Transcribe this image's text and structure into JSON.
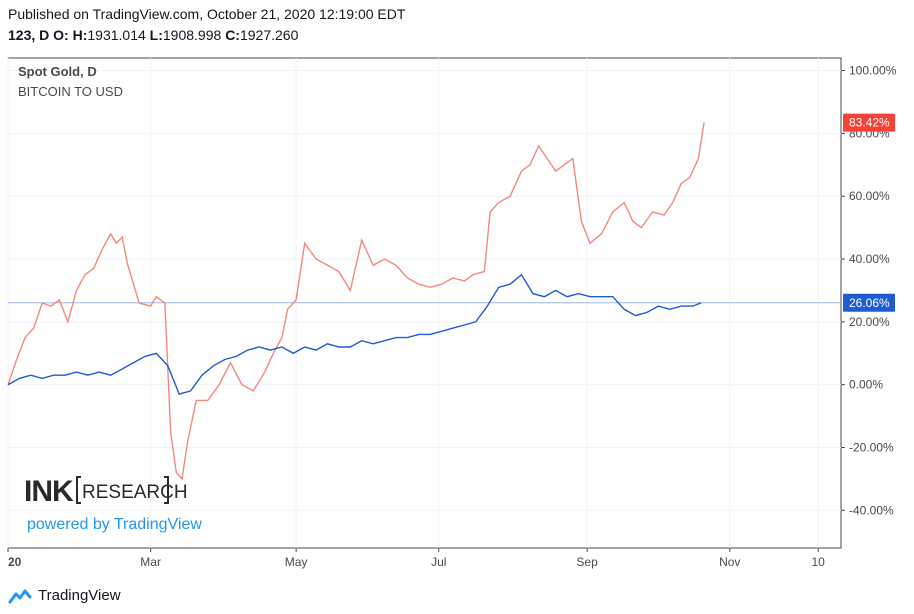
{
  "header": {
    "published": "Published on TradingView.com, October 21, 2020 12:19:00 EDT",
    "symbol": "123, D",
    "o_label": "O:",
    "h_label": "H:",
    "h_val": "1931.014",
    "l_label": "L:",
    "l_val": "1908.998",
    "c_label": "C:",
    "c_val": "1927.260"
  },
  "legend": {
    "title": "Spot Gold, D",
    "subtitle": "BITCOIN TO USD"
  },
  "watermark": {
    "ink": "INK",
    "research": "RESEARCH",
    "powered": "powered by TradingView"
  },
  "footer": {
    "brand": "TradingView"
  },
  "colors": {
    "gold": "#1f5bd1",
    "bitcoin": "#f08a7c",
    "gold_badge": "#1f5bd1",
    "bitcoin_badge": "#f44336",
    "crosshair": "#9fb8e6",
    "grid": "#f0f3f7",
    "powered": "#2196f3"
  },
  "chart_data": {
    "type": "line",
    "y_unit": "%",
    "ylim": [
      -52,
      104
    ],
    "y_ticks": [
      100,
      80,
      60,
      40,
      20,
      0,
      -20,
      -40
    ],
    "y_tick_labels": [
      "100.00%",
      "80.00%",
      "60.00%",
      "40.00%",
      "20.00%",
      "0.00%",
      "-20.00%",
      "-40.00%"
    ],
    "xlim": [
      0,
      292
    ],
    "x_ticks": [
      {
        "day": 0,
        "label": "20",
        "bold": true
      },
      {
        "day": 50,
        "label": "Mar",
        "bold": false
      },
      {
        "day": 101,
        "label": "May",
        "bold": false
      },
      {
        "day": 151,
        "label": "Jul",
        "bold": false
      },
      {
        "day": 203,
        "label": "Sep",
        "bold": false
      },
      {
        "day": 253,
        "label": "Nov",
        "bold": false
      },
      {
        "day": 284,
        "label": "10",
        "bold": false
      }
    ],
    "last_values": {
      "gold": 26.06,
      "bitcoin": 83.42
    },
    "badge_labels": {
      "gold": "26.06%",
      "bitcoin": "83.42%"
    },
    "series": [
      {
        "id": "gold",
        "points": [
          [
            0,
            0
          ],
          [
            4,
            2
          ],
          [
            8,
            3
          ],
          [
            12,
            2
          ],
          [
            16,
            3
          ],
          [
            20,
            3
          ],
          [
            24,
            4
          ],
          [
            28,
            3
          ],
          [
            32,
            4
          ],
          [
            36,
            3
          ],
          [
            40,
            5
          ],
          [
            44,
            7
          ],
          [
            48,
            9
          ],
          [
            52,
            10
          ],
          [
            56,
            6
          ],
          [
            60,
            -3
          ],
          [
            64,
            -2
          ],
          [
            68,
            3
          ],
          [
            72,
            6
          ],
          [
            76,
            8
          ],
          [
            80,
            9
          ],
          [
            84,
            11
          ],
          [
            88,
            12
          ],
          [
            92,
            11
          ],
          [
            96,
            12
          ],
          [
            100,
            10
          ],
          [
            104,
            12
          ],
          [
            108,
            11
          ],
          [
            112,
            13
          ],
          [
            116,
            12
          ],
          [
            120,
            12
          ],
          [
            124,
            14
          ],
          [
            128,
            13
          ],
          [
            132,
            14
          ],
          [
            136,
            15
          ],
          [
            140,
            15
          ],
          [
            144,
            16
          ],
          [
            148,
            16
          ],
          [
            152,
            17
          ],
          [
            156,
            18
          ],
          [
            160,
            19
          ],
          [
            164,
            20
          ],
          [
            168,
            25
          ],
          [
            172,
            31
          ],
          [
            176,
            32
          ],
          [
            180,
            35
          ],
          [
            184,
            29
          ],
          [
            188,
            28
          ],
          [
            192,
            30
          ],
          [
            196,
            28
          ],
          [
            200,
            29
          ],
          [
            204,
            28
          ],
          [
            208,
            28
          ],
          [
            212,
            28
          ],
          [
            216,
            24
          ],
          [
            220,
            22
          ],
          [
            224,
            23
          ],
          [
            228,
            25
          ],
          [
            232,
            24
          ],
          [
            236,
            25
          ],
          [
            240,
            25
          ],
          [
            243,
            26.06
          ]
        ]
      },
      {
        "id": "bitcoin",
        "points": [
          [
            0,
            0
          ],
          [
            3,
            8
          ],
          [
            6,
            15
          ],
          [
            9,
            18
          ],
          [
            12,
            26
          ],
          [
            15,
            25
          ],
          [
            18,
            27
          ],
          [
            21,
            20
          ],
          [
            24,
            30
          ],
          [
            27,
            35
          ],
          [
            30,
            37
          ],
          [
            33,
            43
          ],
          [
            36,
            48
          ],
          [
            38,
            45
          ],
          [
            40,
            47
          ],
          [
            42,
            38
          ],
          [
            46,
            26
          ],
          [
            50,
            25
          ],
          [
            52,
            28
          ],
          [
            55,
            26
          ],
          [
            57,
            -15
          ],
          [
            59,
            -28
          ],
          [
            61,
            -30
          ],
          [
            63,
            -18
          ],
          [
            66,
            -5
          ],
          [
            70,
            -5
          ],
          [
            74,
            0
          ],
          [
            78,
            7
          ],
          [
            82,
            0
          ],
          [
            86,
            -2
          ],
          [
            90,
            4
          ],
          [
            93,
            10
          ],
          [
            96,
            15
          ],
          [
            98,
            24
          ],
          [
            101,
            27
          ],
          [
            104,
            45
          ],
          [
            108,
            40
          ],
          [
            112,
            38
          ],
          [
            116,
            36
          ],
          [
            120,
            30
          ],
          [
            124,
            46
          ],
          [
            128,
            38
          ],
          [
            132,
            40
          ],
          [
            136,
            38
          ],
          [
            140,
            34
          ],
          [
            144,
            32
          ],
          [
            148,
            31
          ],
          [
            152,
            32
          ],
          [
            156,
            34
          ],
          [
            160,
            33
          ],
          [
            163,
            35
          ],
          [
            167,
            36
          ],
          [
            169,
            55
          ],
          [
            172,
            58
          ],
          [
            176,
            60
          ],
          [
            180,
            68
          ],
          [
            183,
            70
          ],
          [
            186,
            76
          ],
          [
            189,
            72
          ],
          [
            192,
            68
          ],
          [
            195,
            70
          ],
          [
            198,
            72
          ],
          [
            201,
            52
          ],
          [
            204,
            45
          ],
          [
            208,
            48
          ],
          [
            212,
            55
          ],
          [
            216,
            58
          ],
          [
            219,
            52
          ],
          [
            222,
            50
          ],
          [
            226,
            55
          ],
          [
            230,
            54
          ],
          [
            233,
            58
          ],
          [
            236,
            64
          ],
          [
            239,
            66
          ],
          [
            242,
            72
          ],
          [
            244,
            83.42
          ]
        ]
      }
    ]
  }
}
